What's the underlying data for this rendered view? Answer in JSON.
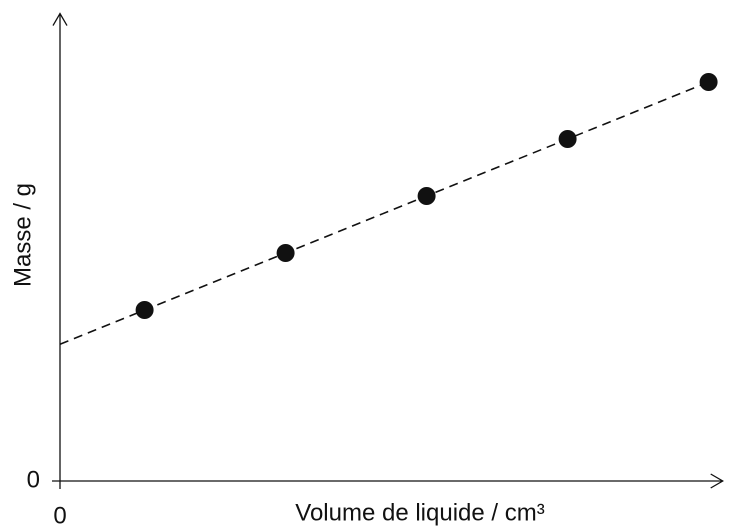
{
  "chart_data": {
    "type": "scatter",
    "x_label": "Volume de liquide / cm³",
    "y_label": "Masse / g",
    "x": [
      0.6,
      1.6,
      2.6,
      3.6,
      4.6
    ],
    "values": [
      3.0,
      4.0,
      5.0,
      6.0,
      7.0
    ],
    "color": "#111111",
    "fit": {
      "x": [
        0,
        4.6
      ],
      "y": [
        2.4,
        7.0
      ]
    },
    "xlim": [
      0,
      4.7
    ],
    "ylim": [
      0,
      8.2
    ],
    "xticks": [
      0
    ],
    "yticks": [
      0
    ],
    "grid": false
  }
}
